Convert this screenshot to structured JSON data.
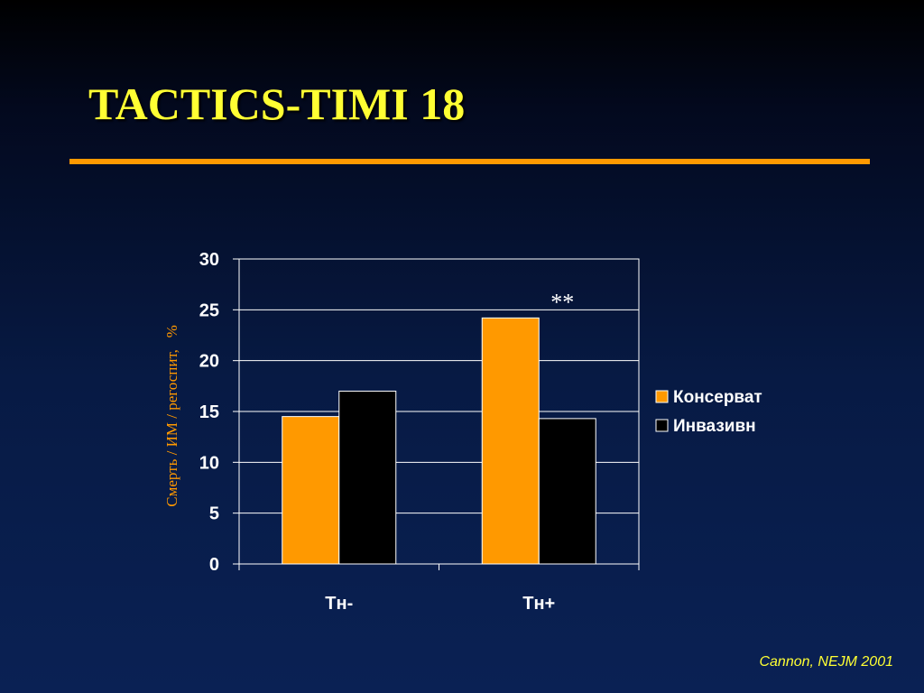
{
  "slide": {
    "title": "TACTICS-TIMI 18",
    "footnote": "Cannon, NEJM 2001"
  },
  "colors": {
    "title": "#ffff33",
    "rule": "#ff9900",
    "axis_text": "#ffffff",
    "ylabel": "#ff9900"
  },
  "chart_data": {
    "type": "bar",
    "categories": [
      "Тн-",
      "Тн+"
    ],
    "series": [
      {
        "name": "Консерват",
        "values": [
          14.5,
          24.2
        ],
        "color": "#ff9900"
      },
      {
        "name": "Инвазивн",
        "values": [
          17.0,
          14.3
        ],
        "color": "#000000"
      }
    ],
    "xlabel": "",
    "ylabel": "Смерть / ИМ / регоспит,   %",
    "ylim": [
      0,
      30
    ],
    "yticks": [
      0,
      5,
      10,
      15,
      20,
      25,
      30
    ],
    "grid": true,
    "legend_position": "right",
    "annotations": [
      {
        "text": "**",
        "category": "Тн+",
        "value": 26.5
      }
    ]
  }
}
